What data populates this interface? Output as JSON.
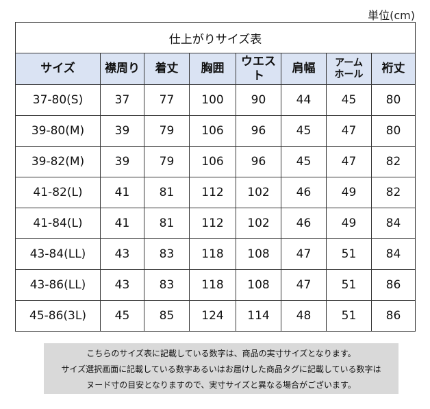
{
  "unit": "単位(cm)",
  "title": "仕上がりサイズ表",
  "columns": [
    "サイズ",
    "襟周り",
    "着丈",
    "胸囲",
    "ウエスト",
    "肩幅",
    "アーム\nホール",
    "裄丈"
  ],
  "rows": [
    [
      "37-80(S)",
      "37",
      "77",
      "100",
      "90",
      "44",
      "45",
      "80"
    ],
    [
      "39-80(M)",
      "39",
      "79",
      "106",
      "96",
      "45",
      "47",
      "80"
    ],
    [
      "39-82(M)",
      "39",
      "79",
      "106",
      "96",
      "45",
      "47",
      "82"
    ],
    [
      "41-82(L)",
      "41",
      "81",
      "112",
      "102",
      "46",
      "49",
      "82"
    ],
    [
      "41-84(L)",
      "41",
      "81",
      "112",
      "102",
      "46",
      "49",
      "84"
    ],
    [
      "43-84(LL)",
      "43",
      "83",
      "118",
      "108",
      "47",
      "51",
      "84"
    ],
    [
      "43-86(LL)",
      "43",
      "83",
      "118",
      "108",
      "47",
      "51",
      "86"
    ],
    [
      "45-86(3L)",
      "45",
      "85",
      "124",
      "114",
      "48",
      "51",
      "86"
    ]
  ],
  "notes": [
    "こちらのサイズ表に記載している数字は、商品の実寸サイズとなります。",
    "サイズ選択画面に記載している数字あるいはお届けした商品タグに記載している数字は",
    "ヌード寸の目安となりますので、実寸サイズと異なる場合がございます。"
  ],
  "colors": {
    "header_bg": "#dae3f3",
    "note_bg": "#d9d9d9",
    "border": "#333333"
  }
}
